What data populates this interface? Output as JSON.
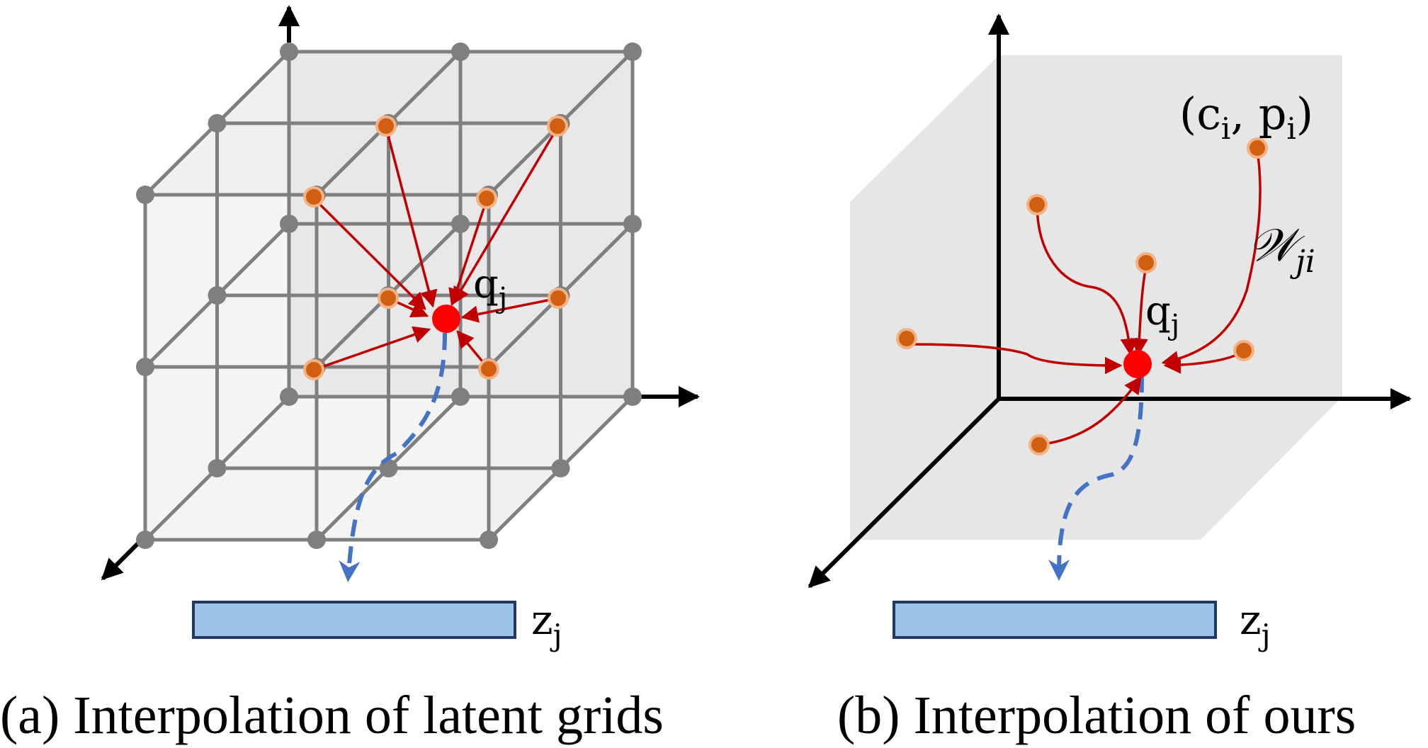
{
  "panel_a": {
    "query_label": "q",
    "query_sub": "j",
    "feature_label": "z",
    "feature_sub": "j",
    "caption": "(a) Interpolation of latent grids"
  },
  "panel_b": {
    "point_label": "(c",
    "point_label_sub1": "i",
    "point_label_mid": ", p",
    "point_label_sub2": "i",
    "point_label_end": ")",
    "weight_label": "𝒲",
    "weight_sub": "ji",
    "query_label": "q",
    "query_sub": "j",
    "feature_label": "z",
    "feature_sub": "j",
    "caption": "(b) Interpolation of ours"
  },
  "colors": {
    "grid_gray": "#7f7f7f",
    "face_gray": "#e6e6e6",
    "anchor_orange": "#d05f12",
    "anchor_ring": "#f4b183",
    "query_red": "#ff0000",
    "arrow_red": "#c00000",
    "flow_blue": "#4472c4",
    "feature_fill": "#9dc3e6",
    "feature_stroke": "#1f3864"
  }
}
